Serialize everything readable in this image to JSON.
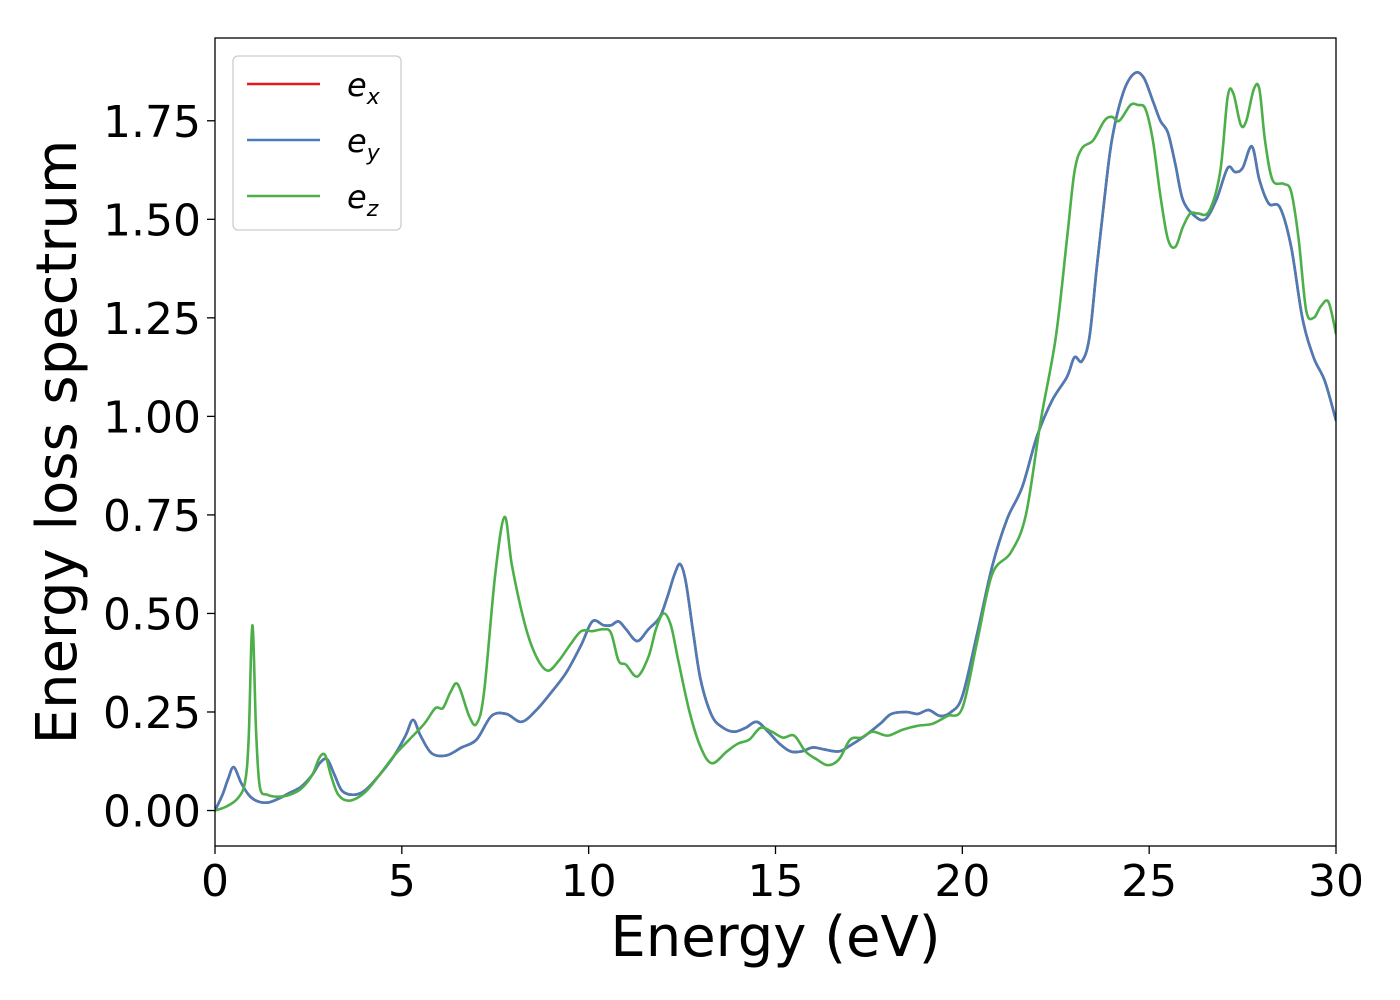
{
  "chart_data": {
    "type": "line",
    "xlabel": "Energy (eV)",
    "ylabel": "Energy loss spectrum",
    "xlim": [
      0,
      30
    ],
    "ylim": [
      -0.09,
      1.96
    ],
    "xticks": [
      0,
      5,
      10,
      15,
      20,
      25,
      30
    ],
    "xtick_labels": [
      "0",
      "5",
      "10",
      "15",
      "20",
      "25",
      "30"
    ],
    "yticks": [
      0.0,
      0.25,
      0.5,
      0.75,
      1.0,
      1.25,
      1.5,
      1.75
    ],
    "ytick_labels": [
      "0.00",
      "0.25",
      "0.50",
      "0.75",
      "1.00",
      "1.25",
      "1.50",
      "1.75"
    ],
    "grid": false,
    "legend_position": "top-left",
    "series": [
      {
        "name": "e_x",
        "legend_base": "e",
        "legend_sub": "x",
        "color": "#e41a1c",
        "x": [
          0,
          0.2,
          0.35,
          0.5,
          0.7,
          0.9,
          1.1,
          1.4,
          1.7,
          2.0,
          2.3,
          2.6,
          2.8,
          3.0,
          3.2,
          3.4,
          3.7,
          4.0,
          4.4,
          4.8,
          5.1,
          5.3,
          5.5,
          5.8,
          6.2,
          6.6,
          7.0,
          7.4,
          7.8,
          8.2,
          8.6,
          9.0,
          9.4,
          9.8,
          10.1,
          10.4,
          10.6,
          10.8,
          11.0,
          11.3,
          11.6,
          11.9,
          12.1,
          12.3,
          12.45,
          12.6,
          12.8,
          13.0,
          13.3,
          13.6,
          13.9,
          14.2,
          14.5,
          14.8,
          15.1,
          15.4,
          15.7,
          16.0,
          16.3,
          16.7,
          17.0,
          17.4,
          17.8,
          18.1,
          18.5,
          18.8,
          19.1,
          19.4,
          19.7,
          20.0,
          20.4,
          20.8,
          21.2,
          21.6,
          22.0,
          22.4,
          22.8,
          23.0,
          23.2,
          23.4,
          23.6,
          23.8,
          24.0,
          24.3,
          24.6,
          24.85,
          25.1,
          25.3,
          25.5,
          25.7,
          25.9,
          26.2,
          26.5,
          26.8,
          27.1,
          27.3,
          27.5,
          27.75,
          27.95,
          28.2,
          28.5,
          28.8,
          29.1,
          29.4,
          29.7,
          30.0
        ],
        "y": [
          0.0,
          0.04,
          0.08,
          0.11,
          0.07,
          0.04,
          0.025,
          0.02,
          0.03,
          0.045,
          0.06,
          0.09,
          0.12,
          0.13,
          0.09,
          0.05,
          0.04,
          0.05,
          0.09,
          0.14,
          0.19,
          0.23,
          0.19,
          0.145,
          0.14,
          0.16,
          0.18,
          0.24,
          0.245,
          0.225,
          0.255,
          0.3,
          0.35,
          0.42,
          0.48,
          0.47,
          0.47,
          0.48,
          0.46,
          0.43,
          0.46,
          0.49,
          0.54,
          0.6,
          0.625,
          0.58,
          0.45,
          0.33,
          0.24,
          0.21,
          0.2,
          0.21,
          0.225,
          0.2,
          0.17,
          0.15,
          0.15,
          0.16,
          0.155,
          0.15,
          0.165,
          0.19,
          0.22,
          0.245,
          0.25,
          0.245,
          0.255,
          0.24,
          0.25,
          0.29,
          0.45,
          0.62,
          0.74,
          0.82,
          0.95,
          1.04,
          1.1,
          1.15,
          1.14,
          1.2,
          1.38,
          1.55,
          1.7,
          1.82,
          1.87,
          1.86,
          1.8,
          1.75,
          1.72,
          1.64,
          1.55,
          1.51,
          1.5,
          1.55,
          1.63,
          1.62,
          1.63,
          1.685,
          1.6,
          1.54,
          1.53,
          1.43,
          1.25,
          1.15,
          1.09,
          0.99
        ]
      },
      {
        "name": "e_y",
        "legend_base": "e",
        "legend_sub": "y",
        "color": "#4a7cb8",
        "x": [
          0,
          0.2,
          0.35,
          0.5,
          0.7,
          0.9,
          1.1,
          1.4,
          1.7,
          2.0,
          2.3,
          2.6,
          2.8,
          3.0,
          3.2,
          3.4,
          3.7,
          4.0,
          4.4,
          4.8,
          5.1,
          5.3,
          5.5,
          5.8,
          6.2,
          6.6,
          7.0,
          7.4,
          7.8,
          8.2,
          8.6,
          9.0,
          9.4,
          9.8,
          10.1,
          10.4,
          10.6,
          10.8,
          11.0,
          11.3,
          11.6,
          11.9,
          12.1,
          12.3,
          12.45,
          12.6,
          12.8,
          13.0,
          13.3,
          13.6,
          13.9,
          14.2,
          14.5,
          14.8,
          15.1,
          15.4,
          15.7,
          16.0,
          16.3,
          16.7,
          17.0,
          17.4,
          17.8,
          18.1,
          18.5,
          18.8,
          19.1,
          19.4,
          19.7,
          20.0,
          20.4,
          20.8,
          21.2,
          21.6,
          22.0,
          22.4,
          22.8,
          23.0,
          23.2,
          23.4,
          23.6,
          23.8,
          24.0,
          24.3,
          24.6,
          24.85,
          25.1,
          25.3,
          25.5,
          25.7,
          25.9,
          26.2,
          26.5,
          26.8,
          27.1,
          27.3,
          27.5,
          27.75,
          27.95,
          28.2,
          28.5,
          28.8,
          29.1,
          29.4,
          29.7,
          30.0
        ],
        "y": [
          0.0,
          0.04,
          0.08,
          0.11,
          0.07,
          0.04,
          0.025,
          0.02,
          0.03,
          0.045,
          0.06,
          0.09,
          0.12,
          0.13,
          0.09,
          0.05,
          0.04,
          0.05,
          0.09,
          0.14,
          0.19,
          0.23,
          0.19,
          0.145,
          0.14,
          0.16,
          0.18,
          0.24,
          0.245,
          0.225,
          0.255,
          0.3,
          0.35,
          0.42,
          0.48,
          0.47,
          0.47,
          0.48,
          0.46,
          0.43,
          0.46,
          0.49,
          0.54,
          0.6,
          0.625,
          0.58,
          0.45,
          0.33,
          0.24,
          0.21,
          0.2,
          0.21,
          0.225,
          0.2,
          0.17,
          0.15,
          0.15,
          0.16,
          0.155,
          0.15,
          0.165,
          0.19,
          0.22,
          0.245,
          0.25,
          0.245,
          0.255,
          0.24,
          0.25,
          0.29,
          0.45,
          0.62,
          0.74,
          0.82,
          0.95,
          1.04,
          1.1,
          1.15,
          1.14,
          1.2,
          1.38,
          1.55,
          1.7,
          1.82,
          1.87,
          1.86,
          1.8,
          1.75,
          1.72,
          1.64,
          1.55,
          1.51,
          1.5,
          1.55,
          1.63,
          1.62,
          1.63,
          1.685,
          1.6,
          1.54,
          1.53,
          1.43,
          1.25,
          1.15,
          1.09,
          0.99
        ]
      },
      {
        "name": "e_z",
        "legend_base": "e",
        "legend_sub": "z",
        "color": "#4daf4a",
        "x": [
          0,
          0.3,
          0.6,
          0.8,
          0.9,
          1.0,
          1.1,
          1.2,
          1.4,
          1.7,
          2.0,
          2.3,
          2.6,
          2.8,
          2.95,
          3.1,
          3.3,
          3.6,
          4.0,
          4.4,
          4.8,
          5.2,
          5.6,
          5.9,
          6.1,
          6.3,
          6.5,
          6.8,
          7.0,
          7.2,
          7.5,
          7.75,
          7.95,
          8.3,
          8.6,
          8.9,
          9.2,
          9.5,
          9.8,
          10.1,
          10.4,
          10.6,
          10.8,
          11.0,
          11.3,
          11.6,
          11.8,
          12.0,
          12.2,
          12.4,
          12.7,
          13.0,
          13.3,
          13.7,
          14.0,
          14.3,
          14.6,
          14.9,
          15.2,
          15.5,
          15.8,
          16.1,
          16.4,
          16.7,
          17.0,
          17.3,
          17.6,
          18.0,
          18.4,
          18.8,
          19.2,
          19.6,
          20.0,
          20.4,
          20.8,
          21.3,
          21.7,
          22.1,
          22.5,
          22.8,
          23.0,
          23.2,
          23.5,
          23.8,
          24.0,
          24.2,
          24.5,
          24.7,
          24.9,
          25.1,
          25.3,
          25.5,
          25.7,
          25.9,
          26.1,
          26.3,
          26.6,
          26.9,
          27.1,
          27.25,
          27.45,
          27.6,
          27.8,
          27.95,
          28.1,
          28.3,
          28.6,
          28.8,
          29.0,
          29.2,
          29.4,
          29.6,
          29.8,
          30.0
        ],
        "y": [
          0.0,
          0.01,
          0.03,
          0.07,
          0.18,
          0.47,
          0.2,
          0.06,
          0.04,
          0.035,
          0.04,
          0.055,
          0.09,
          0.135,
          0.14,
          0.09,
          0.04,
          0.025,
          0.045,
          0.09,
          0.14,
          0.18,
          0.22,
          0.26,
          0.26,
          0.3,
          0.32,
          0.24,
          0.22,
          0.3,
          0.6,
          0.745,
          0.62,
          0.47,
          0.39,
          0.355,
          0.38,
          0.42,
          0.455,
          0.455,
          0.46,
          0.45,
          0.38,
          0.37,
          0.34,
          0.39,
          0.46,
          0.5,
          0.47,
          0.38,
          0.25,
          0.16,
          0.12,
          0.15,
          0.17,
          0.18,
          0.21,
          0.2,
          0.185,
          0.19,
          0.15,
          0.13,
          0.115,
          0.13,
          0.18,
          0.185,
          0.2,
          0.19,
          0.205,
          0.215,
          0.22,
          0.24,
          0.26,
          0.43,
          0.6,
          0.655,
          0.75,
          0.99,
          1.2,
          1.45,
          1.62,
          1.68,
          1.7,
          1.75,
          1.76,
          1.75,
          1.79,
          1.79,
          1.78,
          1.7,
          1.56,
          1.45,
          1.43,
          1.48,
          1.515,
          1.515,
          1.52,
          1.62,
          1.81,
          1.82,
          1.74,
          1.75,
          1.83,
          1.83,
          1.7,
          1.6,
          1.59,
          1.57,
          1.45,
          1.27,
          1.25,
          1.28,
          1.29,
          1.21
        ]
      }
    ]
  }
}
